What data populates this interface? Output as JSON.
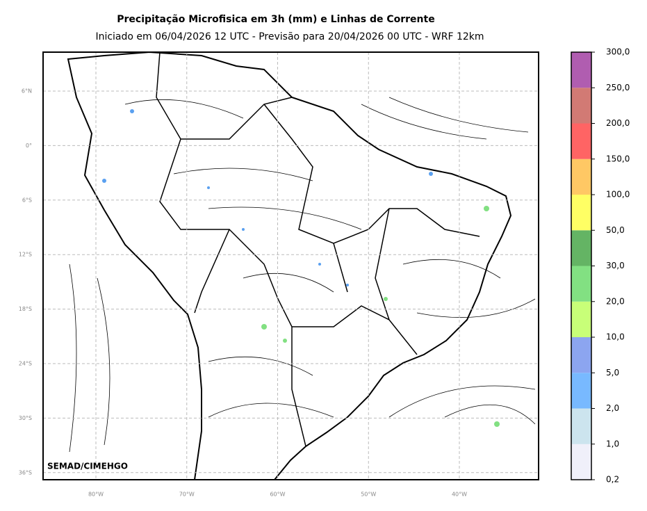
{
  "header": {
    "title": "Precipitação Microfisica em 3h (mm) e Linhas de Corrente",
    "subtitle": "Iniciado em 06/04/2026 12 UTC - Previsão para 20/04/2026 00 UTC - WRF 12km"
  },
  "map": {
    "lat_labels": [
      "6°N",
      "0°",
      "6°S",
      "12°S",
      "18°S",
      "24°S",
      "30°S",
      "36°S"
    ],
    "lon_labels": [
      "80°W",
      "70°W",
      "60°W",
      "50°W",
      "40°W"
    ],
    "credit": "SEMAD/CIMEHGO"
  },
  "colorbar": {
    "labels": [
      "0,2",
      "1,0",
      "2,0",
      "5,0",
      "10,0",
      "20,0",
      "30,0",
      "50,0",
      "100,0",
      "150,0",
      "200,0",
      "250,0",
      "300,0"
    ],
    "colors": [
      "#f0f0fa",
      "#cce4ee",
      "#78b9ff",
      "#8ca5f0",
      "#c8ff78",
      "#82e082",
      "#64b464",
      "#ffff64",
      "#ffc864",
      "#ff6464",
      "#d27a74",
      "#b05db0"
    ]
  }
}
